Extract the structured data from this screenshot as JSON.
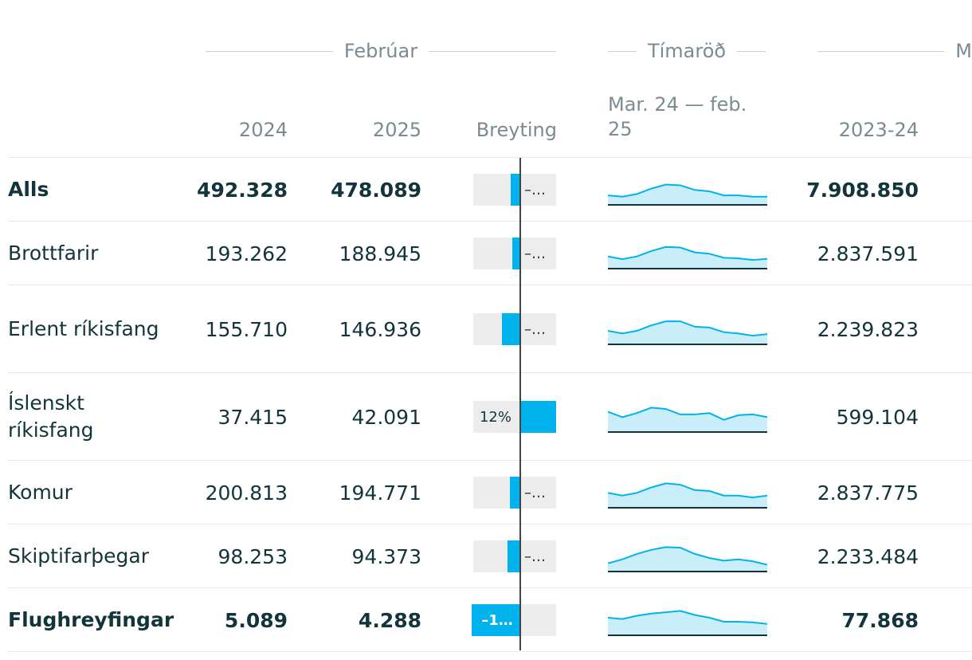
{
  "groups": {
    "february": "Febrúar",
    "timeseries": "Tímaröð",
    "moving": "M"
  },
  "columns": {
    "y2024": "2024",
    "y2025": "2025",
    "change": "Breyting",
    "period": "Mar. 24 — feb. 25",
    "span": "2023-24"
  },
  "colors": {
    "bar": "#00b3ec",
    "bar_bg": "#ececec",
    "spark_line": "#00b3ec",
    "spark_fill": "#c9eef9"
  },
  "rows": [
    {
      "name": "Alls",
      "v2024": "492.328",
      "v2025": "478.089",
      "change_label": "–…",
      "change_pct": -2.9,
      "span_value": "7.908.850",
      "bold": true,
      "trend": [
        0.35,
        0.3,
        0.4,
        0.6,
        0.75,
        0.72,
        0.55,
        0.5,
        0.35,
        0.35,
        0.3,
        0.3
      ]
    },
    {
      "name": "Brottfarir",
      "v2024": "193.262",
      "v2025": "188.945",
      "change_label": "–…",
      "change_pct": -2.2,
      "span_value": "2.837.591",
      "bold": false,
      "trend": [
        0.45,
        0.35,
        0.45,
        0.65,
        0.8,
        0.78,
        0.6,
        0.55,
        0.4,
        0.38,
        0.32,
        0.36
      ]
    },
    {
      "name": "Erlent ríkisfang",
      "v2024": "155.710",
      "v2025": "146.936",
      "change_label": "–…",
      "change_pct": -5.6,
      "span_value": "2.239.823",
      "bold": false,
      "trend": [
        0.5,
        0.4,
        0.5,
        0.7,
        0.85,
        0.85,
        0.65,
        0.62,
        0.45,
        0.4,
        0.32,
        0.38
      ]
    },
    {
      "name": "Íslenskt ríkisfang",
      "v2024": "37.415",
      "v2025": "42.091",
      "change_label": "12%",
      "change_pct": 12.5,
      "span_value": "599.104",
      "bold": false,
      "trend": [
        0.75,
        0.55,
        0.7,
        0.9,
        0.85,
        0.65,
        0.65,
        0.7,
        0.45,
        0.62,
        0.65,
        0.55
      ]
    },
    {
      "name": "Komur",
      "v2024": "200.813",
      "v2025": "194.771",
      "change_label": "–…",
      "change_pct": -3.0,
      "span_value": "2.837.775",
      "bold": false,
      "trend": [
        0.55,
        0.45,
        0.55,
        0.75,
        0.9,
        0.85,
        0.65,
        0.62,
        0.45,
        0.45,
        0.38,
        0.45
      ]
    },
    {
      "name": "Skiptifarþegar",
      "v2024": "98.253",
      "v2025": "94.373",
      "change_label": "–…",
      "change_pct": -3.9,
      "span_value": "2.233.484",
      "bold": false,
      "trend": [
        0.3,
        0.45,
        0.65,
        0.8,
        0.9,
        0.88,
        0.65,
        0.5,
        0.4,
        0.45,
        0.38,
        0.25
      ]
    },
    {
      "name": "Flughreyfingar",
      "v2024": "5.089",
      "v2025": "4.288",
      "change_label": "–1…",
      "change_pct": -15.7,
      "span_value": "77.868",
      "bold": true,
      "trend": [
        0.65,
        0.6,
        0.72,
        0.8,
        0.85,
        0.9,
        0.75,
        0.65,
        0.5,
        0.5,
        0.48,
        0.42
      ]
    }
  ]
}
